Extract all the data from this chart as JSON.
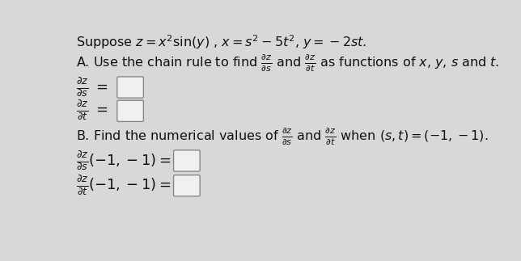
{
  "bg_color": "#d8d8d8",
  "text_color": "#111111",
  "fig_width": 6.44,
  "fig_height": 3.23,
  "dpi": 100,
  "title_line": "Suppose $z = x^2 \\sin(y)$ , $x = s^2 - 5t^2$, $y = -2st$.",
  "line_A": "A. Use the chain rule to find $\\frac{\\partial z}{\\partial s}$ and $\\frac{\\partial z}{\\partial t}$ as functions of $x$, $y$, $s$ and $t$.",
  "line_B": "B. Find the numerical values of $\\frac{\\partial z}{\\partial s}$ and $\\frac{\\partial z}{\\partial t}$ when $(s, t) = (-1, -1)$.",
  "box_color": "#f0f0f0",
  "box_edge": "#888888"
}
